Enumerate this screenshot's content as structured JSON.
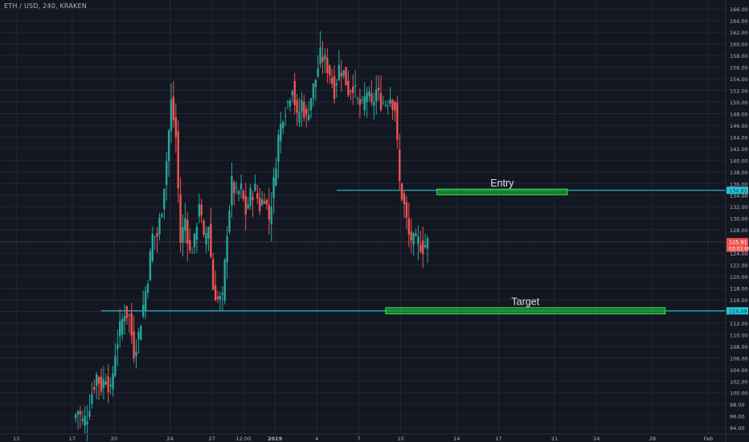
{
  "symbol": {
    "title": "ETH / USD, 240, KRAKEN"
  },
  "colors": {
    "background": "#131722",
    "grid": "#232735",
    "axis_text": "#b2b5be",
    "up": "#26a69a",
    "down": "#ef5350",
    "level_line": "#26c6da",
    "zone_fill": "#1e9e32",
    "zone_border": "#3cff55",
    "current_price": "#ef5350"
  },
  "chart_data": {
    "type": "candlestick",
    "title": "",
    "xlabel": "",
    "ylabel": "",
    "ylim": [
      92.5,
      167
    ],
    "grid": true,
    "y_ticks": [
      94,
      96,
      98,
      100,
      102,
      104,
      106,
      108,
      110,
      112,
      114,
      116,
      118,
      120,
      122,
      124,
      126,
      128,
      130,
      132,
      134,
      136,
      138,
      140,
      142,
      144,
      146,
      148,
      150,
      152,
      154,
      156,
      158,
      160,
      162,
      164,
      166
    ],
    "x_ticks": [
      {
        "label": "13",
        "pos": 3.5
      },
      {
        "label": "17",
        "pos": 27.5
      },
      {
        "label": "20",
        "pos": 45.5
      },
      {
        "label": "24",
        "pos": 69.5
      },
      {
        "label": "27",
        "pos": 87.5
      },
      {
        "label": "12:00",
        "pos": 101
      },
      {
        "label": "2019",
        "pos": 114.5
      },
      {
        "label": "4",
        "pos": 132.5
      },
      {
        "label": "7",
        "pos": 150.5
      },
      {
        "label": "10",
        "pos": 168.5
      },
      {
        "label": "14",
        "pos": 192.5
      },
      {
        "label": "17",
        "pos": 210.5
      },
      {
        "label": "21",
        "pos": 234.5
      },
      {
        "label": "24",
        "pos": 252.5
      },
      {
        "label": "28",
        "pos": 276.5
      },
      {
        "label": "Feb",
        "pos": 300.5
      }
    ],
    "x_range": [
      0,
      308
    ],
    "series": [
      {
        "name": "ETH / USD",
        "anchors": [
          [
            29,
            95.5
          ],
          [
            31,
            97
          ],
          [
            33,
            95
          ],
          [
            35,
            96
          ],
          [
            37,
            100
          ],
          [
            39,
            103
          ],
          [
            41,
            101
          ],
          [
            43,
            103
          ],
          [
            45,
            100
          ],
          [
            47,
            107
          ],
          [
            49,
            111
          ],
          [
            51,
            114
          ],
          [
            53,
            113
          ],
          [
            55,
            107
          ],
          [
            57,
            110
          ],
          [
            59,
            115
          ],
          [
            61,
            120
          ],
          [
            63,
            127
          ],
          [
            65,
            127
          ],
          [
            67,
            132
          ],
          [
            69,
            140
          ],
          [
            71,
            150
          ],
          [
            73,
            144
          ],
          [
            75,
            126
          ],
          [
            77,
            130
          ],
          [
            79,
            124
          ],
          [
            81,
            126
          ],
          [
            83,
            133
          ],
          [
            85,
            126
          ],
          [
            87,
            129
          ],
          [
            89,
            118
          ],
          [
            91,
            116
          ],
          [
            93,
            116
          ],
          [
            95,
            128
          ],
          [
            97,
            136
          ],
          [
            99,
            134
          ],
          [
            101,
            135
          ],
          [
            103,
            131
          ],
          [
            105,
            134
          ],
          [
            107,
            135
          ],
          [
            109,
            132
          ],
          [
            111,
            134
          ],
          [
            113,
            130
          ],
          [
            115,
            136
          ],
          [
            117,
            144
          ],
          [
            119,
            148
          ],
          [
            121,
            150
          ],
          [
            123,
            153
          ],
          [
            125,
            147
          ],
          [
            127,
            150
          ],
          [
            129,
            147
          ],
          [
            131,
            151
          ],
          [
            133,
            154
          ],
          [
            135,
            158
          ],
          [
            137,
            157
          ],
          [
            139,
            155
          ],
          [
            141,
            152
          ],
          [
            143,
            156
          ],
          [
            145,
            155
          ],
          [
            147,
            152
          ],
          [
            149,
            153
          ],
          [
            151,
            150
          ],
          [
            153,
            149
          ],
          [
            155,
            152
          ],
          [
            157,
            149
          ],
          [
            159,
            152
          ],
          [
            161,
            150
          ],
          [
            163,
            150
          ],
          [
            165,
            151
          ],
          [
            167,
            149
          ],
          [
            169,
            136
          ],
          [
            171,
            132
          ],
          [
            173,
            127
          ],
          [
            175,
            126
          ],
          [
            177,
            126
          ],
          [
            179,
            125
          ],
          [
            181,
            125.9
          ]
        ]
      }
    ],
    "levels": [
      {
        "name": "Entry line",
        "y": 134.82,
        "x_start": 141
      },
      {
        "name": "Target line",
        "y": 114.09,
        "x_start": 40
      }
    ],
    "zones": [
      {
        "label": "Entry",
        "x_from": 184,
        "x_to": 240,
        "y_low": 134.05,
        "y_high": 135.05
      },
      {
        "label": "Target",
        "x_from": 162,
        "x_to": 282,
        "y_low": 113.55,
        "y_high": 114.65
      }
    ],
    "current_price": {
      "value": 125.91,
      "label": "125.91",
      "countdown": "03:01:08"
    },
    "level_labels": [
      {
        "value": 134.82,
        "label": "134.82"
      },
      {
        "value": 114.09,
        "label": "114.09"
      }
    ]
  }
}
